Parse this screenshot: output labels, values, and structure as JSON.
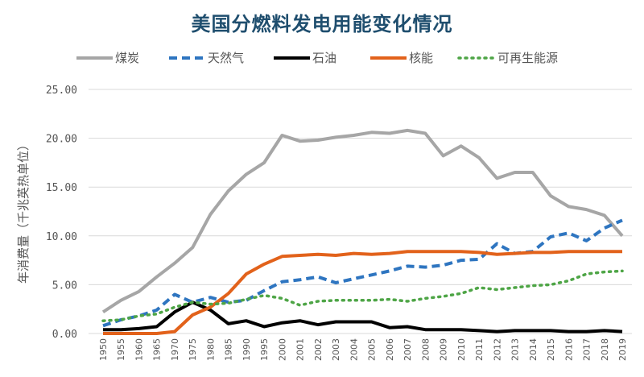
{
  "chart_data": {
    "type": "line",
    "title": "美国分燃料发电用能变化情况",
    "ylabel": "年消费量（千兆英热单位）",
    "xlabel": "",
    "ylim": [
      0,
      25
    ],
    "yticks": [
      "0.00",
      "5.00",
      "10.00",
      "15.00",
      "20.00",
      "25.00"
    ],
    "ytick_values": [
      0,
      5,
      10,
      15,
      20,
      25
    ],
    "grid": true,
    "legend_position": "top",
    "categories": [
      "1950",
      "1955",
      "1960",
      "1965",
      "1970",
      "1975",
      "1980",
      "1985",
      "1990",
      "1995",
      "2000",
      "2001",
      "2002",
      "2003",
      "2004",
      "2005",
      "2006",
      "2007",
      "2008",
      "2009",
      "2010",
      "2011",
      "2012",
      "2013",
      "2014",
      "2015",
      "2016",
      "2017",
      "2018",
      "2019"
    ],
    "series": [
      {
        "name": "煤炭",
        "color": "#a6a6a6",
        "style": "solid",
        "values": [
          2.2,
          3.4,
          4.3,
          5.8,
          7.2,
          8.8,
          12.2,
          14.6,
          16.3,
          17.5,
          20.3,
          19.7,
          19.8,
          20.1,
          20.3,
          20.6,
          20.5,
          20.8,
          20.5,
          18.2,
          19.2,
          18.0,
          15.9,
          16.5,
          16.5,
          14.1,
          13.0,
          12.7,
          12.1,
          10.0
        ]
      },
      {
        "name": "天然气",
        "color": "#2e75c0",
        "style": "dash",
        "values": [
          0.8,
          1.4,
          1.8,
          2.4,
          4.0,
          3.2,
          3.7,
          3.2,
          3.4,
          4.4,
          5.3,
          5.5,
          5.8,
          5.2,
          5.6,
          6.0,
          6.4,
          6.9,
          6.8,
          7.0,
          7.5,
          7.6,
          9.2,
          8.2,
          8.4,
          9.9,
          10.3,
          9.5,
          10.8,
          11.6
        ]
      },
      {
        "name": "石油",
        "color": "#000000",
        "style": "solid",
        "values": [
          0.4,
          0.4,
          0.5,
          0.7,
          2.2,
          3.2,
          2.4,
          1.0,
          1.3,
          0.7,
          1.1,
          1.3,
          0.9,
          1.2,
          1.2,
          1.2,
          0.6,
          0.7,
          0.4,
          0.4,
          0.4,
          0.3,
          0.2,
          0.3,
          0.3,
          0.3,
          0.2,
          0.2,
          0.3,
          0.2
        ]
      },
      {
        "name": "核能",
        "color": "#e2621b",
        "style": "solid",
        "values": [
          0,
          0,
          0,
          0,
          0.2,
          1.9,
          2.7,
          4.1,
          6.1,
          7.1,
          7.9,
          8.0,
          8.1,
          8.0,
          8.2,
          8.1,
          8.2,
          8.4,
          8.4,
          8.4,
          8.4,
          8.3,
          8.1,
          8.2,
          8.3,
          8.3,
          8.4,
          8.4,
          8.4,
          8.4
        ]
      },
      {
        "name": "可再生能源",
        "color": "#4ea546",
        "style": "dot",
        "values": [
          1.3,
          1.4,
          1.8,
          2.0,
          2.7,
          3.2,
          3.0,
          3.1,
          3.5,
          3.9,
          3.6,
          2.9,
          3.3,
          3.4,
          3.4,
          3.4,
          3.5,
          3.3,
          3.6,
          3.8,
          4.1,
          4.7,
          4.5,
          4.7,
          4.9,
          5.0,
          5.4,
          6.1,
          6.3,
          6.4
        ]
      }
    ]
  }
}
